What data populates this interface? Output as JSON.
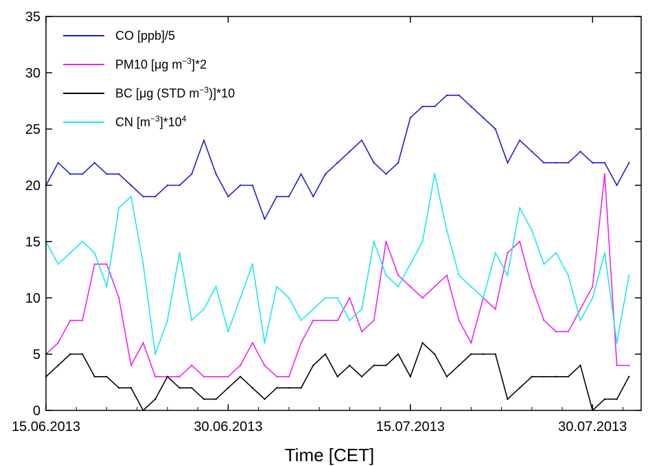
{
  "chart_data": {
    "type": "line",
    "title": "",
    "xlabel": "Time [CET]",
    "ylabel": "",
    "xlim": [
      "15.06.2013",
      "03.08.2013"
    ],
    "ylim": [
      0,
      35
    ],
    "x_ticks": [
      "15.06.2013",
      "30.06.2013",
      "15.07.2013",
      "30.07.2013"
    ],
    "y_ticks": [
      0,
      5,
      10,
      15,
      20,
      25,
      30,
      35
    ],
    "grid": false,
    "legend_position": "top-left",
    "x": [
      "15.06.2013",
      "16.06.2013",
      "17.06.2013",
      "18.06.2013",
      "19.06.2013",
      "20.06.2013",
      "21.06.2013",
      "22.06.2013",
      "23.06.2013",
      "24.06.2013",
      "25.06.2013",
      "26.06.2013",
      "27.06.2013",
      "28.06.2013",
      "29.06.2013",
      "30.06.2013",
      "01.07.2013",
      "02.07.2013",
      "03.07.2013",
      "04.07.2013",
      "05.07.2013",
      "06.07.2013",
      "07.07.2013",
      "08.07.2013",
      "09.07.2013",
      "10.07.2013",
      "11.07.2013",
      "12.07.2013",
      "13.07.2013",
      "14.07.2013",
      "15.07.2013",
      "16.07.2013",
      "17.07.2013",
      "18.07.2013",
      "19.07.2013",
      "20.07.2013",
      "21.07.2013",
      "22.07.2013",
      "23.07.2013",
      "24.07.2013",
      "25.07.2013",
      "26.07.2013",
      "27.07.2013",
      "28.07.2013",
      "29.07.2013",
      "30.07.2013",
      "31.07.2013",
      "01.08.2013",
      "02.08.2013"
    ],
    "series": [
      {
        "name": "CO [ppb]/5",
        "legend_label_parts": {
          "base": "CO [ppb]/5"
        },
        "color": "#1c1ccc",
        "values": [
          20,
          22,
          21,
          21,
          22,
          21,
          21,
          20,
          19,
          19,
          20,
          20,
          21,
          24,
          21,
          19,
          20,
          20,
          17,
          19,
          19,
          21,
          19,
          21,
          22,
          23,
          24,
          22,
          21,
          22,
          26,
          27,
          27,
          28,
          28,
          27,
          26,
          25,
          22,
          24,
          23,
          22,
          22,
          22,
          23,
          22,
          22,
          20,
          22
        ]
      },
      {
        "name": "PM10 [μg m-3]*2",
        "legend_label_parts": {
          "base": "PM10 [μg m",
          "sup": "−3",
          "tail": "]*2"
        },
        "color": "#ee22ee",
        "values": [
          5,
          6,
          8,
          8,
          13,
          13,
          10,
          4,
          6,
          3,
          3,
          3,
          4,
          3,
          3,
          3,
          4,
          6,
          4,
          3,
          3,
          6,
          8,
          8,
          8,
          10,
          7,
          8,
          15,
          12,
          11,
          10,
          11,
          12,
          8,
          6,
          10,
          9,
          14,
          15,
          11,
          8,
          7,
          7,
          9,
          11,
          21,
          4,
          4
        ]
      },
      {
        "name": "BC [μg (STD m-3)]*10",
        "legend_label_parts": {
          "base": "BC [μg (STD m",
          "sup": "−3",
          "tail": ")]*10"
        },
        "color": "#000000",
        "values": [
          3,
          4,
          5,
          5,
          3,
          3,
          2,
          2,
          0,
          1,
          3,
          2,
          2,
          1,
          1,
          2,
          3,
          2,
          1,
          2,
          2,
          2,
          4,
          5,
          3,
          4,
          3,
          4,
          4,
          5,
          3,
          6,
          5,
          3,
          4,
          5,
          5,
          5,
          1,
          2,
          3,
          3,
          3,
          3,
          4,
          0,
          1,
          1,
          3
        ]
      },
      {
        "name": "CN [m-3]*10^4",
        "legend_label_parts": {
          "base": "CN [m",
          "sup": "−3",
          "tail": "]*10",
          "sup2": "4"
        },
        "color": "#1ee6f0",
        "values": [
          15,
          13,
          14,
          15,
          14,
          11,
          18,
          19,
          13,
          5,
          8,
          14,
          8,
          9,
          11,
          7,
          10,
          13,
          6,
          11,
          10,
          8,
          9,
          10,
          10,
          8,
          9,
          15,
          12,
          11,
          13,
          15,
          21,
          16,
          12,
          11,
          10,
          14,
          12,
          18,
          16,
          13,
          14,
          12,
          8,
          10,
          14,
          6,
          12
        ]
      }
    ]
  }
}
